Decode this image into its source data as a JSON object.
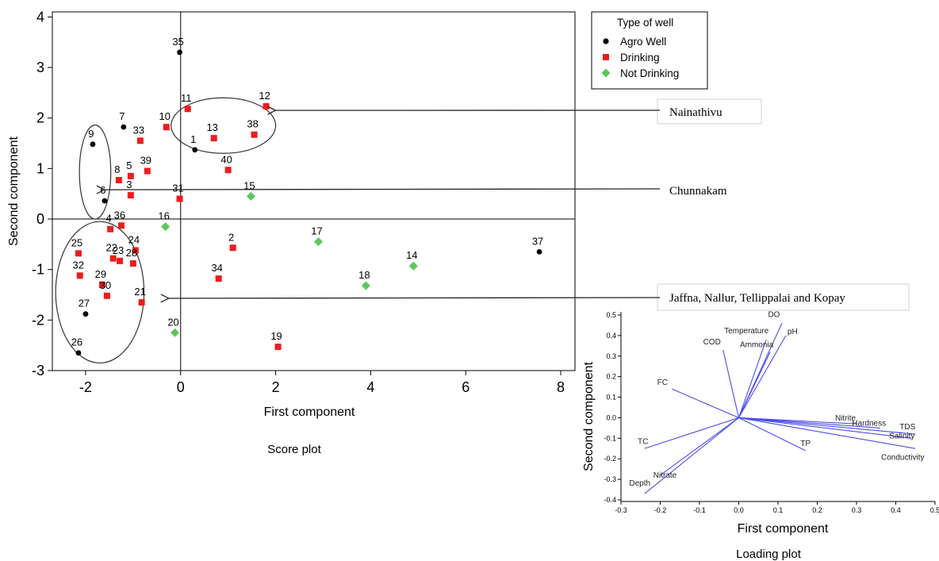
{
  "score_plot": {
    "caption": "Score plot",
    "legend": {
      "title": "Type of well",
      "items": [
        {
          "label": "Agro Well",
          "shape": "circle",
          "color": "#000000"
        },
        {
          "label": "Drinking",
          "shape": "square",
          "color": "#ee1c1c"
        },
        {
          "label": "Not Drinking",
          "shape": "diamond",
          "color": "#5ac85a"
        }
      ]
    },
    "annotations": [
      {
        "label": "Nainathivu",
        "arrow_to": [
          2.0,
          2.15
        ]
      },
      {
        "label": "Chunnakam",
        "arrow_to": [
          -1.6,
          0.58
        ]
      },
      {
        "label": "Jaffna, Nallur, Tellippalai and Kopay",
        "arrow_to": [
          -0.25,
          -1.57
        ]
      }
    ]
  },
  "loading_plot": {
    "caption": "Loading plot"
  },
  "chart_data": [
    {
      "type": "scatter",
      "title": "",
      "xlabel": "First component",
      "ylabel": "Second component",
      "xlim": [
        -2.7,
        8.3
      ],
      "ylim": [
        -3.0,
        4.1
      ],
      "xticks": [
        "-2",
        "0",
        "2",
        "4",
        "6",
        "8"
      ],
      "yticks": [
        "-3",
        "-2",
        "-1",
        "0",
        "1",
        "2",
        "3",
        "4"
      ],
      "reference_lines": {
        "x": 0,
        "y": 0
      },
      "groups": [
        {
          "ellipse_center": [
            0.9,
            1.85
          ],
          "ellipse_radii": [
            1.1,
            0.55
          ]
        },
        {
          "ellipse_center": [
            -1.8,
            0.93
          ],
          "ellipse_radii": [
            0.33,
            0.93
          ]
        },
        {
          "ellipse_center": [
            -1.7,
            -1.45
          ],
          "ellipse_radii": [
            0.93,
            1.4
          ]
        }
      ],
      "series": [
        {
          "name": "Agro Well",
          "points": [
            {
              "label": "35",
              "x": -0.02,
              "y": 3.3
            },
            {
              "label": "7",
              "x": -1.2,
              "y": 1.82
            },
            {
              "label": "1",
              "x": 0.3,
              "y": 1.37
            },
            {
              "label": "9",
              "x": -1.85,
              "y": 1.48
            },
            {
              "label": "6",
              "x": -1.6,
              "y": 0.36
            },
            {
              "label": "27",
              "x": -2.0,
              "y": -1.88
            },
            {
              "label": "26",
              "x": -2.15,
              "y": -2.65
            },
            {
              "label": "37",
              "x": 7.55,
              "y": -0.65
            }
          ]
        },
        {
          "name": "Drinking",
          "points": [
            {
              "label": "11",
              "x": 0.15,
              "y": 2.18
            },
            {
              "label": "12",
              "x": 1.8,
              "y": 2.23
            },
            {
              "label": "10",
              "x": -0.3,
              "y": 1.82
            },
            {
              "label": "13",
              "x": 0.7,
              "y": 1.6
            },
            {
              "label": "38",
              "x": 1.55,
              "y": 1.67
            },
            {
              "label": "33",
              "x": -0.85,
              "y": 1.55
            },
            {
              "label": "5",
              "x": -1.05,
              "y": 0.85
            },
            {
              "label": "39",
              "x": -0.7,
              "y": 0.95
            },
            {
              "label": "8",
              "x": -1.3,
              "y": 0.77
            },
            {
              "label": "40",
              "x": 1.0,
              "y": 0.97
            },
            {
              "label": "3",
              "x": -1.05,
              "y": 0.47
            },
            {
              "label": "31",
              "x": -0.02,
              "y": 0.4
            },
            {
              "label": "4",
              "x": -1.48,
              "y": -0.2
            },
            {
              "label": "36",
              "x": -1.25,
              "y": -0.13
            },
            {
              "label": "25",
              "x": -2.15,
              "y": -0.68
            },
            {
              "label": "24",
              "x": -0.95,
              "y": -0.62
            },
            {
              "label": "22",
              "x": -1.42,
              "y": -0.78
            },
            {
              "label": "23",
              "x": -1.28,
              "y": -0.83
            },
            {
              "label": "28",
              "x": -1.0,
              "y": -0.88
            },
            {
              "label": "32",
              "x": -2.12,
              "y": -1.12
            },
            {
              "label": "29",
              "x": -1.65,
              "y": -1.3
            },
            {
              "label": "30",
              "x": -1.55,
              "y": -1.52
            },
            {
              "label": "21",
              "x": -0.82,
              "y": -1.65
            },
            {
              "label": "2",
              "x": 1.1,
              "y": -0.57
            },
            {
              "label": "34",
              "x": 0.8,
              "y": -1.18
            },
            {
              "label": "19",
              "x": 2.05,
              "y": -2.53
            }
          ]
        },
        {
          "name": "Not Drinking",
          "points": [
            {
              "label": "15",
              "x": 1.48,
              "y": 0.45
            },
            {
              "label": "16",
              "x": -0.32,
              "y": -0.15
            },
            {
              "label": "17",
              "x": 2.9,
              "y": -0.45
            },
            {
              "label": "14",
              "x": 4.9,
              "y": -0.93
            },
            {
              "label": "18",
              "x": 3.9,
              "y": -1.32
            },
            {
              "label": "20",
              "x": -0.12,
              "y": -2.25
            }
          ]
        }
      ]
    },
    {
      "type": "biplot",
      "title": "",
      "xlabel": "First component",
      "ylabel": "Second component",
      "xlim": [
        -0.3,
        0.5
      ],
      "ylim": [
        -0.4,
        0.5
      ],
      "xticks": [
        "-0.3",
        "-0.2",
        "-0.1",
        "0.0",
        "0.1",
        "0.2",
        "0.3",
        "0.4",
        "0.5"
      ],
      "yticks": [
        "-0.4",
        "-0.3",
        "-0.2",
        "-0.1",
        "0.0",
        "0.1",
        "0.2",
        "0.3",
        "0.4",
        "0.5"
      ],
      "line_color": "#4b4bea",
      "vectors": [
        {
          "label": "DO",
          "x": 0.11,
          "y": 0.46
        },
        {
          "label": "pH",
          "x": 0.12,
          "y": 0.4
        },
        {
          "label": "Temperature",
          "x": 0.07,
          "y": 0.38
        },
        {
          "label": "Ammonia",
          "x": 0.08,
          "y": 0.32
        },
        {
          "label": "COD",
          "x": -0.04,
          "y": 0.33
        },
        {
          "label": "FC",
          "x": -0.17,
          "y": 0.14
        },
        {
          "label": "Nitrite",
          "x": 0.3,
          "y": -0.03
        },
        {
          "label": "Hardness",
          "x": 0.36,
          "y": -0.05
        },
        {
          "label": "TDS",
          "x": 0.45,
          "y": -0.08
        },
        {
          "label": "Salinity",
          "x": 0.44,
          "y": -0.1
        },
        {
          "label": "Conductivity",
          "x": 0.45,
          "y": -0.15
        },
        {
          "label": "TP",
          "x": 0.17,
          "y": -0.16
        },
        {
          "label": "TC",
          "x": -0.24,
          "y": -0.15
        },
        {
          "label": "Nitrate",
          "x": -0.2,
          "y": -0.28
        },
        {
          "label": "Depth",
          "x": -0.24,
          "y": -0.37
        }
      ]
    }
  ]
}
